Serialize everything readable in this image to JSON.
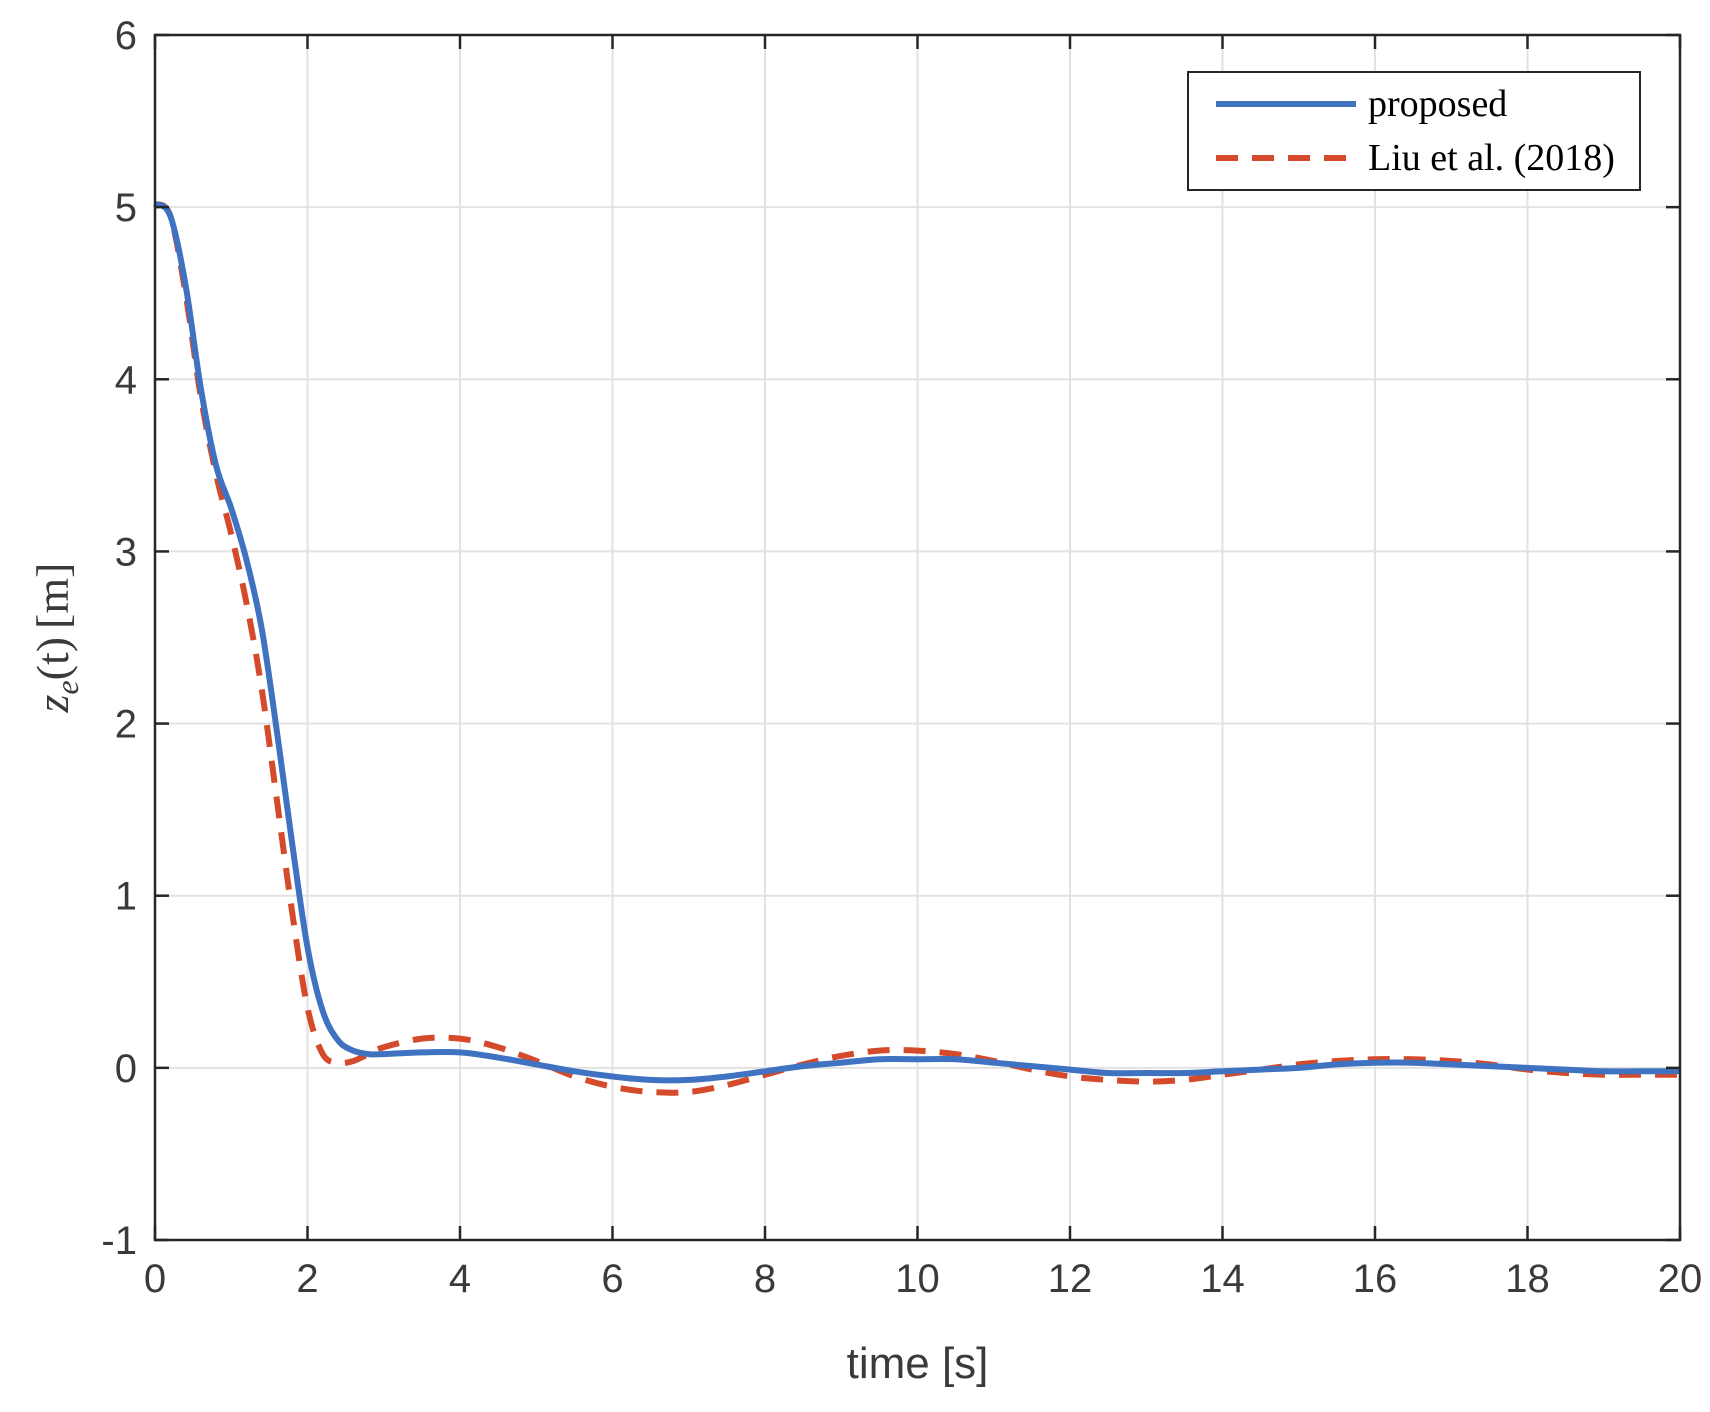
{
  "chart_data": {
    "type": "line",
    "xlabel": "time [s]",
    "ylabel": "z_e(t) [m]",
    "ylabel_parts": {
      "var": "z",
      "sub": "e",
      "arg": "(t)",
      "unit": "[m]"
    },
    "xlim": [
      0,
      20
    ],
    "ylim": [
      -1,
      6
    ],
    "xticks": [
      0,
      2,
      4,
      6,
      8,
      10,
      12,
      14,
      16,
      18,
      20
    ],
    "yticks": [
      -1,
      0,
      1,
      2,
      3,
      4,
      5,
      6
    ],
    "grid": true,
    "legend_position": "top-right",
    "series": [
      {
        "name": "proposed",
        "color": "#3f72c0",
        "style": "solid",
        "x": [
          0,
          0.2,
          0.4,
          0.6,
          0.8,
          1.0,
          1.2,
          1.4,
          1.6,
          1.8,
          2.0,
          2.2,
          2.4,
          2.6,
          2.8,
          3.0,
          3.5,
          4.0,
          4.5,
          5.0,
          5.5,
          6.0,
          6.5,
          7.0,
          7.5,
          8.0,
          8.5,
          9.0,
          9.5,
          10.0,
          10.5,
          11.0,
          11.5,
          12.0,
          12.5,
          13.0,
          13.5,
          14.0,
          14.5,
          15.0,
          15.5,
          16.0,
          16.5,
          17.0,
          17.5,
          18.0,
          18.5,
          19.0,
          19.5,
          20.0
        ],
        "y": [
          5.02,
          4.95,
          4.55,
          3.95,
          3.5,
          3.25,
          2.95,
          2.55,
          1.95,
          1.3,
          0.7,
          0.33,
          0.16,
          0.1,
          0.08,
          0.08,
          0.09,
          0.09,
          0.06,
          0.02,
          -0.02,
          -0.05,
          -0.07,
          -0.07,
          -0.05,
          -0.02,
          0.01,
          0.03,
          0.05,
          0.05,
          0.05,
          0.03,
          0.01,
          -0.01,
          -0.03,
          -0.03,
          -0.03,
          -0.02,
          -0.01,
          0.0,
          0.02,
          0.03,
          0.03,
          0.02,
          0.01,
          0.0,
          -0.01,
          -0.02,
          -0.02,
          -0.02
        ]
      },
      {
        "name": "Liu et al. (2018)",
        "color": "#d44a2a",
        "style": "dashed",
        "x": [
          0,
          0.2,
          0.4,
          0.6,
          0.8,
          1.0,
          1.2,
          1.4,
          1.6,
          1.8,
          2.0,
          2.2,
          2.4,
          2.6,
          2.8,
          3.0,
          3.5,
          4.0,
          4.5,
          5.0,
          5.5,
          6.0,
          6.5,
          7.0,
          7.5,
          8.0,
          8.5,
          9.0,
          9.5,
          10.0,
          10.5,
          11.0,
          11.5,
          12.0,
          12.5,
          13.0,
          13.5,
          14.0,
          14.5,
          15.0,
          15.5,
          16.0,
          16.5,
          17.0,
          17.5,
          18.0,
          18.5,
          19.0,
          19.5,
          20.0
        ],
        "y": [
          5.02,
          4.95,
          4.5,
          3.9,
          3.45,
          3.1,
          2.7,
          2.2,
          1.55,
          0.9,
          0.35,
          0.08,
          0.03,
          0.04,
          0.08,
          0.12,
          0.17,
          0.17,
          0.12,
          0.04,
          -0.05,
          -0.11,
          -0.14,
          -0.14,
          -0.1,
          -0.04,
          0.02,
          0.07,
          0.1,
          0.1,
          0.08,
          0.04,
          -0.01,
          -0.05,
          -0.07,
          -0.08,
          -0.07,
          -0.04,
          -0.01,
          0.02,
          0.04,
          0.05,
          0.05,
          0.04,
          0.02,
          -0.01,
          -0.03,
          -0.04,
          -0.04,
          -0.04
        ]
      }
    ]
  }
}
